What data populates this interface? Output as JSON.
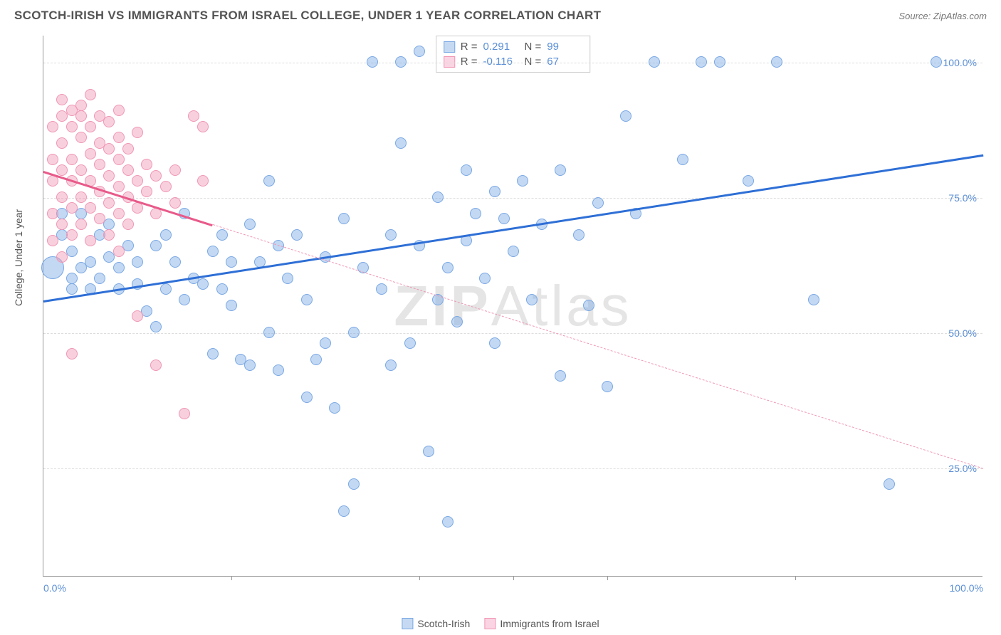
{
  "title": "SCOTCH-IRISH VS IMMIGRANTS FROM ISRAEL COLLEGE, UNDER 1 YEAR CORRELATION CHART",
  "source": "Source: ZipAtlas.com",
  "ylabel": "College, Under 1 year",
  "watermark_bold": "ZIP",
  "watermark_light": "Atlas",
  "chart": {
    "type": "scatter",
    "xlim": [
      0,
      100
    ],
    "ylim": [
      5,
      105
    ],
    "yticks": [
      {
        "v": 25,
        "label": "25.0%"
      },
      {
        "v": 50,
        "label": "50.0%"
      },
      {
        "v": 75,
        "label": "75.0%"
      },
      {
        "v": 100,
        "label": "100.0%"
      }
    ],
    "xticks_labels": [
      {
        "v": 0,
        "label": "0.0%"
      },
      {
        "v": 100,
        "label": "100.0%"
      }
    ],
    "xticks_marks": [
      20,
      40,
      50,
      60,
      80
    ],
    "grid_color": "#dddddd",
    "background_color": "#ffffff",
    "tick_label_color": "#5b8fd6"
  },
  "series": [
    {
      "name": "Scotch-Irish",
      "color_fill": "rgba(122,168,228,0.45)",
      "color_stroke": "#7aa8e4",
      "trend_color": "#2e6fd6",
      "swatch_fill": "#c5daf2",
      "swatch_border": "#7aa8e4",
      "r": 0.291,
      "n": 99,
      "trend": {
        "x1": 0,
        "y1": 56,
        "x2": 100,
        "y2": 83,
        "solid_to_x": 100
      },
      "marker_radius": 8,
      "points": [
        [
          1,
          62,
          16
        ],
        [
          2,
          72,
          8
        ],
        [
          2,
          68,
          8
        ],
        [
          3,
          60,
          8
        ],
        [
          3,
          65,
          8
        ],
        [
          3,
          58,
          8
        ],
        [
          4,
          62,
          8
        ],
        [
          4,
          72,
          8
        ],
        [
          5,
          58,
          8
        ],
        [
          5,
          63,
          8
        ],
        [
          6,
          68,
          8
        ],
        [
          6,
          60,
          8
        ],
        [
          7,
          70,
          8
        ],
        [
          7,
          64,
          8
        ],
        [
          8,
          58,
          8
        ],
        [
          8,
          62,
          8
        ],
        [
          9,
          66,
          8
        ],
        [
          10,
          59,
          8
        ],
        [
          10,
          63,
          8
        ],
        [
          11,
          54,
          8
        ],
        [
          12,
          66,
          8
        ],
        [
          12,
          51,
          8
        ],
        [
          13,
          58,
          8
        ],
        [
          13,
          68,
          8
        ],
        [
          14,
          63,
          8
        ],
        [
          15,
          72,
          8
        ],
        [
          15,
          56,
          8
        ],
        [
          16,
          60,
          8
        ],
        [
          17,
          59,
          8
        ],
        [
          18,
          65,
          8
        ],
        [
          18,
          46,
          8
        ],
        [
          19,
          68,
          8
        ],
        [
          19,
          58,
          8
        ],
        [
          20,
          55,
          8
        ],
        [
          20,
          63,
          8
        ],
        [
          21,
          45,
          8
        ],
        [
          22,
          70,
          8
        ],
        [
          22,
          44,
          8
        ],
        [
          23,
          63,
          8
        ],
        [
          24,
          78,
          8
        ],
        [
          24,
          50,
          8
        ],
        [
          25,
          66,
          8
        ],
        [
          25,
          43,
          8
        ],
        [
          26,
          60,
          8
        ],
        [
          27,
          68,
          8
        ],
        [
          28,
          38,
          8
        ],
        [
          28,
          56,
          8
        ],
        [
          29,
          45,
          8
        ],
        [
          30,
          64,
          8
        ],
        [
          30,
          48,
          8
        ],
        [
          31,
          36,
          8
        ],
        [
          32,
          71,
          8
        ],
        [
          32,
          17,
          8
        ],
        [
          33,
          22,
          8
        ],
        [
          33,
          50,
          8
        ],
        [
          34,
          62,
          8
        ],
        [
          35,
          100,
          8
        ],
        [
          36,
          58,
          8
        ],
        [
          37,
          68,
          8
        ],
        [
          37,
          44,
          8
        ],
        [
          38,
          100,
          8
        ],
        [
          38,
          85,
          8
        ],
        [
          39,
          48,
          8
        ],
        [
          40,
          66,
          8
        ],
        [
          40,
          102,
          8
        ],
        [
          41,
          28,
          8
        ],
        [
          42,
          75,
          8
        ],
        [
          42,
          56,
          8
        ],
        [
          43,
          62,
          8
        ],
        [
          43,
          15,
          8
        ],
        [
          44,
          52,
          8
        ],
        [
          45,
          80,
          8
        ],
        [
          45,
          67,
          8
        ],
        [
          46,
          72,
          8
        ],
        [
          47,
          60,
          8
        ],
        [
          48,
          76,
          8
        ],
        [
          48,
          48,
          8
        ],
        [
          49,
          71,
          8
        ],
        [
          50,
          65,
          8
        ],
        [
          51,
          78,
          8
        ],
        [
          52,
          56,
          8
        ],
        [
          53,
          70,
          8
        ],
        [
          55,
          80,
          8
        ],
        [
          55,
          42,
          8
        ],
        [
          57,
          68,
          8
        ],
        [
          58,
          55,
          8
        ],
        [
          59,
          74,
          8
        ],
        [
          60,
          40,
          8
        ],
        [
          62,
          90,
          8
        ],
        [
          63,
          72,
          8
        ],
        [
          65,
          100,
          8
        ],
        [
          68,
          82,
          8
        ],
        [
          70,
          100,
          8
        ],
        [
          72,
          100,
          8
        ],
        [
          75,
          78,
          8
        ],
        [
          78,
          100,
          8
        ],
        [
          82,
          56,
          8
        ],
        [
          90,
          22,
          8
        ],
        [
          95,
          100,
          8
        ]
      ]
    },
    {
      "name": "Immigrants from Israel",
      "color_fill": "rgba(240,150,180,0.45)",
      "color_stroke": "#f096b4",
      "trend_color": "#e85a8a",
      "swatch_fill": "#fad4e2",
      "swatch_border": "#f096b4",
      "r": -0.116,
      "n": 67,
      "trend": {
        "x1": 0,
        "y1": 80,
        "x2": 100,
        "y2": 25,
        "solid_to_x": 18
      },
      "marker_radius": 8,
      "points": [
        [
          1,
          82,
          8
        ],
        [
          1,
          78,
          8
        ],
        [
          1,
          88,
          8
        ],
        [
          1,
          72,
          8
        ],
        [
          1,
          67,
          8
        ],
        [
          2,
          85,
          8
        ],
        [
          2,
          80,
          8
        ],
        [
          2,
          75,
          8
        ],
        [
          2,
          90,
          8
        ],
        [
          2,
          70,
          8
        ],
        [
          2,
          64,
          8
        ],
        [
          2,
          93,
          8
        ],
        [
          3,
          82,
          8
        ],
        [
          3,
          78,
          8
        ],
        [
          3,
          88,
          8
        ],
        [
          3,
          73,
          8
        ],
        [
          3,
          91,
          8
        ],
        [
          3,
          68,
          8
        ],
        [
          3,
          46,
          8
        ],
        [
          4,
          86,
          8
        ],
        [
          4,
          80,
          8
        ],
        [
          4,
          75,
          8
        ],
        [
          4,
          90,
          8
        ],
        [
          4,
          70,
          8
        ],
        [
          4,
          92,
          8
        ],
        [
          5,
          83,
          8
        ],
        [
          5,
          78,
          8
        ],
        [
          5,
          73,
          8
        ],
        [
          5,
          88,
          8
        ],
        [
          5,
          67,
          8
        ],
        [
          5,
          94,
          8
        ],
        [
          6,
          81,
          8
        ],
        [
          6,
          76,
          8
        ],
        [
          6,
          90,
          8
        ],
        [
          6,
          71,
          8
        ],
        [
          6,
          85,
          8
        ],
        [
          7,
          79,
          8
        ],
        [
          7,
          84,
          8
        ],
        [
          7,
          74,
          8
        ],
        [
          7,
          89,
          8
        ],
        [
          7,
          68,
          8
        ],
        [
          8,
          82,
          8
        ],
        [
          8,
          77,
          8
        ],
        [
          8,
          86,
          8
        ],
        [
          8,
          72,
          8
        ],
        [
          8,
          91,
          8
        ],
        [
          8,
          65,
          8
        ],
        [
          9,
          80,
          8
        ],
        [
          9,
          75,
          8
        ],
        [
          9,
          84,
          8
        ],
        [
          9,
          70,
          8
        ],
        [
          10,
          78,
          8
        ],
        [
          10,
          73,
          8
        ],
        [
          10,
          87,
          8
        ],
        [
          10,
          53,
          8
        ],
        [
          11,
          81,
          8
        ],
        [
          11,
          76,
          8
        ],
        [
          12,
          79,
          8
        ],
        [
          12,
          72,
          8
        ],
        [
          12,
          44,
          8
        ],
        [
          13,
          77,
          8
        ],
        [
          14,
          80,
          8
        ],
        [
          14,
          74,
          8
        ],
        [
          15,
          35,
          8
        ],
        [
          16,
          90,
          8
        ],
        [
          17,
          78,
          8
        ],
        [
          17,
          88,
          8
        ]
      ]
    }
  ],
  "stats_labels": {
    "r": "R =",
    "n": "N ="
  },
  "legend": {
    "s1": "Scotch-Irish",
    "s2": "Immigrants from Israel"
  }
}
